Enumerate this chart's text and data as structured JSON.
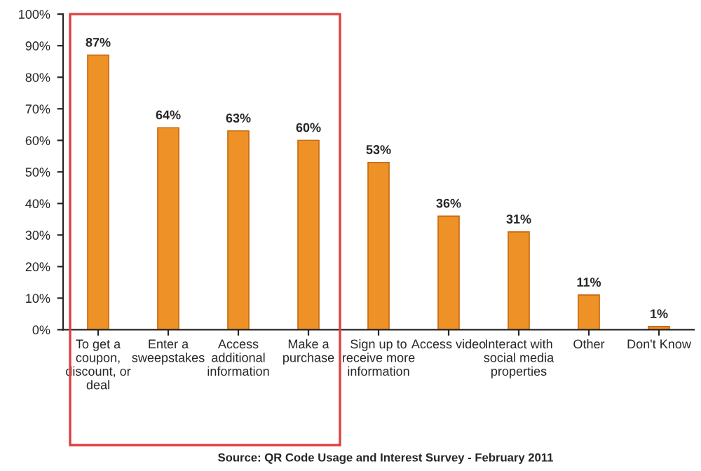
{
  "chart_data": {
    "type": "bar",
    "categories": [
      "To get a coupon, discount, or deal",
      "Enter a sweepstakes",
      "Access additional information",
      "Make a purchase",
      "Sign up to receive more information",
      "Access video",
      "Interact with social media properties",
      "Other",
      "Don't Know"
    ],
    "values": [
      87,
      64,
      63,
      60,
      53,
      36,
      31,
      11,
      1
    ],
    "color": "#ee9127",
    "value_labels": [
      "87%",
      "64%",
      "63%",
      "60%",
      "53%",
      "36%",
      "31%",
      "11%",
      "1%"
    ],
    "ylim": [
      0,
      100
    ],
    "yticks": [
      {
        "value": 0,
        "label": "0%"
      },
      {
        "value": 10,
        "label": "10%"
      },
      {
        "value": 20,
        "label": "20%"
      },
      {
        "value": 30,
        "label": "30%"
      },
      {
        "value": 40,
        "label": "40%"
      },
      {
        "value": 50,
        "label": "50%"
      },
      {
        "value": 60,
        "label": "60%"
      },
      {
        "value": 70,
        "label": "70%"
      },
      {
        "value": 80,
        "label": "80%"
      },
      {
        "value": 90,
        "label": "90%"
      },
      {
        "value": 100,
        "label": "100%"
      }
    ],
    "grid": false,
    "annotations": [
      "Source: QR Code Usage and Interest Survey - February 2011"
    ]
  }
}
